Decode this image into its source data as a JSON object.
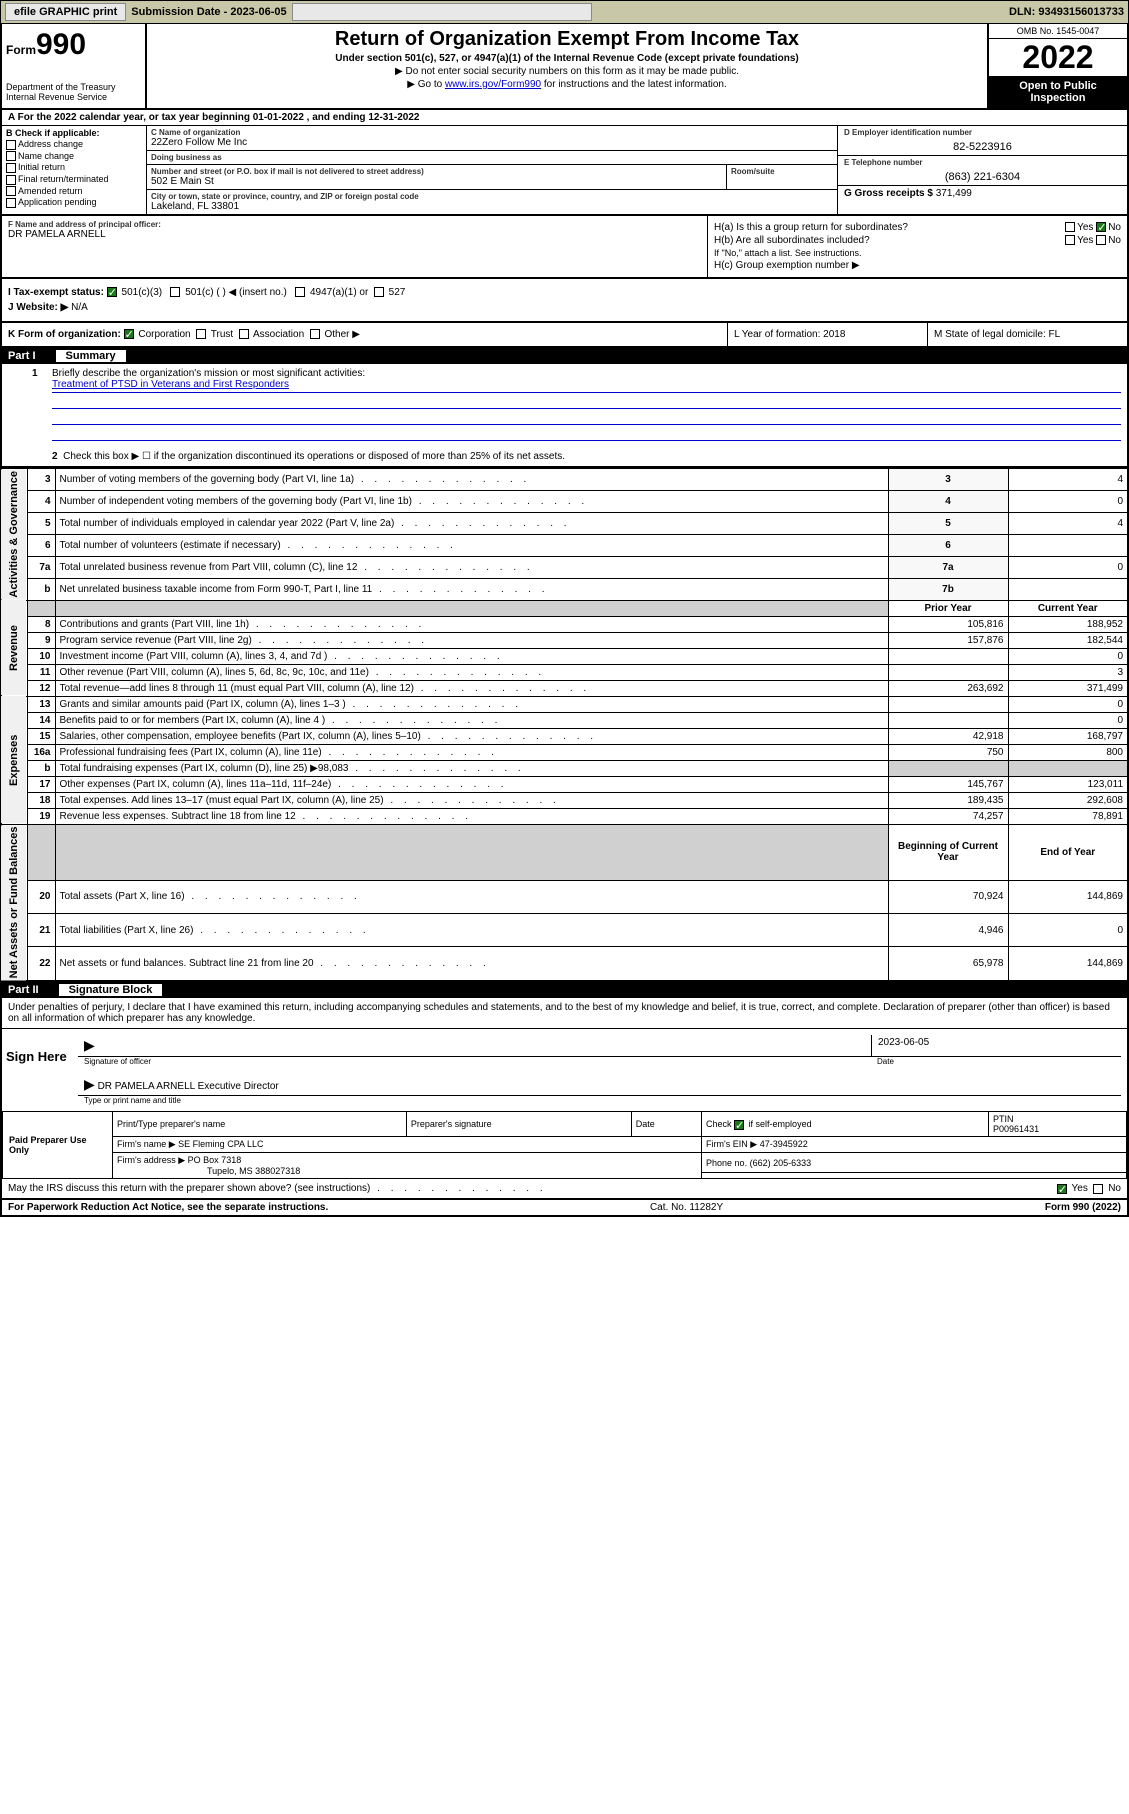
{
  "topbar": {
    "efile": "efile GRAPHIC print",
    "sub_label": "Submission Date - ",
    "sub_date": "2023-06-05",
    "dln": "DLN: 93493156013733"
  },
  "header": {
    "form_word": "Form",
    "form_num": "990",
    "title": "Return of Organization Exempt From Income Tax",
    "sub1": "Under section 501(c), 527, or 4947(a)(1) of the Internal Revenue Code (except private foundations)",
    "bullet1": "▶ Do not enter social security numbers on this form as it may be made public.",
    "bullet2_pre": "▶ Go to ",
    "bullet2_link": "www.irs.gov/Form990",
    "bullet2_post": " for instructions and the latest information.",
    "dept": "Department of the Treasury\nInternal Revenue Service",
    "omb": "OMB No. 1545-0047",
    "year": "2022",
    "open": "Open to Public Inspection"
  },
  "rowA": "A For the 2022 calendar year, or tax year beginning 01-01-2022     , and ending 12-31-2022",
  "colB": {
    "title": "B Check if applicable:",
    "opts": [
      "Address change",
      "Name change",
      "Initial return",
      "Final return/terminated",
      "Amended return",
      "Application pending"
    ]
  },
  "colC": {
    "name_lbl": "C Name of organization",
    "name": "22Zero Follow Me Inc",
    "dba_lbl": "Doing business as",
    "dba": "",
    "addr_lbl": "Number and street (or P.O. box if mail is not delivered to street address)",
    "room_lbl": "Room/suite",
    "addr": "502 E Main St",
    "city_lbl": "City or town, state or province, country, and ZIP or foreign postal code",
    "city": "Lakeland, FL  33801"
  },
  "colDE": {
    "d_lbl": "D Employer identification number",
    "ein": "82-5223916",
    "e_lbl": "E Telephone number",
    "phone": "(863) 221-6304",
    "g_lbl": "G Gross receipts $",
    "gross": "371,499"
  },
  "FG": {
    "f_lbl": "F Name and address of principal officer:",
    "f_name": "DR PAMELA ARNELL",
    "ha": "H(a)  Is this a group return for subordinates?",
    "ha_no": "No",
    "hb": "H(b)  Are all subordinates included?",
    "hb_note": "If \"No,\" attach a list. See instructions.",
    "hc": "H(c)  Group exemption number ▶"
  },
  "IJ": {
    "i_lbl": "I  Tax-exempt status:",
    "i_501c3": "501(c)(3)",
    "i_501c": "501(c) (   ) ◀ (insert no.)",
    "i_4947": "4947(a)(1) or",
    "i_527": "527",
    "j_lbl": "J  Website: ▶",
    "j_val": "N/A"
  },
  "K": {
    "k_lbl": "K Form of organization:",
    "k_corp": "Corporation",
    "k_trust": "Trust",
    "k_assoc": "Association",
    "k_other": "Other ▶",
    "l": "L Year of formation: 2018",
    "m": "M State of legal domicile: FL"
  },
  "part1": {
    "hdr_num": "Part I",
    "hdr_title": "Summary",
    "q1": "Briefly describe the organization's mission or most significant activities:",
    "mission": "Treatment of PTSD in Veterans and First Responders",
    "q2": "Check this box ▶ ☐  if the organization discontinued its operations or disposed of more than 25% of its net assets.",
    "rows_gov": [
      {
        "n": "3",
        "t": "Number of voting members of the governing body (Part VI, line 1a)",
        "rn": "3",
        "v": "4"
      },
      {
        "n": "4",
        "t": "Number of independent voting members of the governing body (Part VI, line 1b)",
        "rn": "4",
        "v": "0"
      },
      {
        "n": "5",
        "t": "Total number of individuals employed in calendar year 2022 (Part V, line 2a)",
        "rn": "5",
        "v": "4"
      },
      {
        "n": "6",
        "t": "Total number of volunteers (estimate if necessary)",
        "rn": "6",
        "v": ""
      },
      {
        "n": "7a",
        "t": "Total unrelated business revenue from Part VIII, column (C), line 12",
        "rn": "7a",
        "v": "0"
      },
      {
        "n": "b",
        "t": "Net unrelated business taxable income from Form 990-T, Part I, line 11",
        "rn": "7b",
        "v": ""
      }
    ],
    "col_prior": "Prior Year",
    "col_curr": "Current Year",
    "rows_rev": [
      {
        "n": "8",
        "t": "Contributions and grants (Part VIII, line 1h)",
        "p": "105,816",
        "c": "188,952"
      },
      {
        "n": "9",
        "t": "Program service revenue (Part VIII, line 2g)",
        "p": "157,876",
        "c": "182,544"
      },
      {
        "n": "10",
        "t": "Investment income (Part VIII, column (A), lines 3, 4, and 7d )",
        "p": "",
        "c": "0"
      },
      {
        "n": "11",
        "t": "Other revenue (Part VIII, column (A), lines 5, 6d, 8c, 9c, 10c, and 11e)",
        "p": "",
        "c": "3"
      },
      {
        "n": "12",
        "t": "Total revenue—add lines 8 through 11 (must equal Part VIII, column (A), line 12)",
        "p": "263,692",
        "c": "371,499"
      }
    ],
    "rows_exp": [
      {
        "n": "13",
        "t": "Grants and similar amounts paid (Part IX, column (A), lines 1–3 )",
        "p": "",
        "c": "0"
      },
      {
        "n": "14",
        "t": "Benefits paid to or for members (Part IX, column (A), line 4 )",
        "p": "",
        "c": "0"
      },
      {
        "n": "15",
        "t": "Salaries, other compensation, employee benefits (Part IX, column (A), lines 5–10)",
        "p": "42,918",
        "c": "168,797"
      },
      {
        "n": "16a",
        "t": "Professional fundraising fees (Part IX, column (A), line 11e)",
        "p": "750",
        "c": "800"
      },
      {
        "n": "b",
        "t": "Total fundraising expenses (Part IX, column (D), line 25) ▶98,083",
        "p": "GREY",
        "c": "GREY"
      },
      {
        "n": "17",
        "t": "Other expenses (Part IX, column (A), lines 11a–11d, 11f–24e)",
        "p": "145,767",
        "c": "123,011"
      },
      {
        "n": "18",
        "t": "Total expenses. Add lines 13–17 (must equal Part IX, column (A), line 25)",
        "p": "189,435",
        "c": "292,608"
      },
      {
        "n": "19",
        "t": "Revenue less expenses. Subtract line 18 from line 12",
        "p": "74,257",
        "c": "78,891"
      }
    ],
    "col_beg": "Beginning of Current Year",
    "col_end": "End of Year",
    "rows_net": [
      {
        "n": "20",
        "t": "Total assets (Part X, line 16)",
        "p": "70,924",
        "c": "144,869"
      },
      {
        "n": "21",
        "t": "Total liabilities (Part X, line 26)",
        "p": "4,946",
        "c": "0"
      },
      {
        "n": "22",
        "t": "Net assets or fund balances. Subtract line 21 from line 20",
        "p": "65,978",
        "c": "144,869"
      }
    ],
    "side_gov": "Activities & Governance",
    "side_rev": "Revenue",
    "side_exp": "Expenses",
    "side_net": "Net Assets or Fund Balances"
  },
  "part2": {
    "hdr_num": "Part II",
    "hdr_title": "Signature Block",
    "decl": "Under penalties of perjury, I declare that I have examined this return, including accompanying schedules and statements, and to the best of my knowledge and belief, it is true, correct, and complete. Declaration of preparer (other than officer) is based on all information of which preparer has any knowledge.",
    "sign_here": "Sign Here",
    "sig_officer": "Signature of officer",
    "sig_date_lbl": "Date",
    "sig_date": "2023-06-05",
    "officer_name": "DR PAMELA ARNELL  Executive Director",
    "type_name": "Type or print name and title",
    "paid": "Paid Preparer Use Only",
    "prep_name_lbl": "Print/Type preparer's name",
    "prep_sig_lbl": "Preparer's signature",
    "date_lbl": "Date",
    "self_emp": "Check ☑ if self-employed",
    "ptin_lbl": "PTIN",
    "ptin": "P00961431",
    "firm_name_lbl": "Firm's name    ▶",
    "firm_name": "SE Fleming CPA LLC",
    "firm_ein_lbl": "Firm's EIN ▶",
    "firm_ein": "47-3945922",
    "firm_addr_lbl": "Firm's address ▶",
    "firm_addr1": "PO Box 7318",
    "firm_addr2": "Tupelo, MS  388027318",
    "phone_lbl": "Phone no.",
    "phone": "(662) 205-6333",
    "may_irs": "May the IRS discuss this return with the preparer shown above? (see instructions)",
    "yes": "Yes",
    "no": "No"
  },
  "footer": {
    "pra": "For Paperwork Reduction Act Notice, see the separate instructions.",
    "cat": "Cat. No. 11282Y",
    "form": "Form 990 (2022)"
  }
}
